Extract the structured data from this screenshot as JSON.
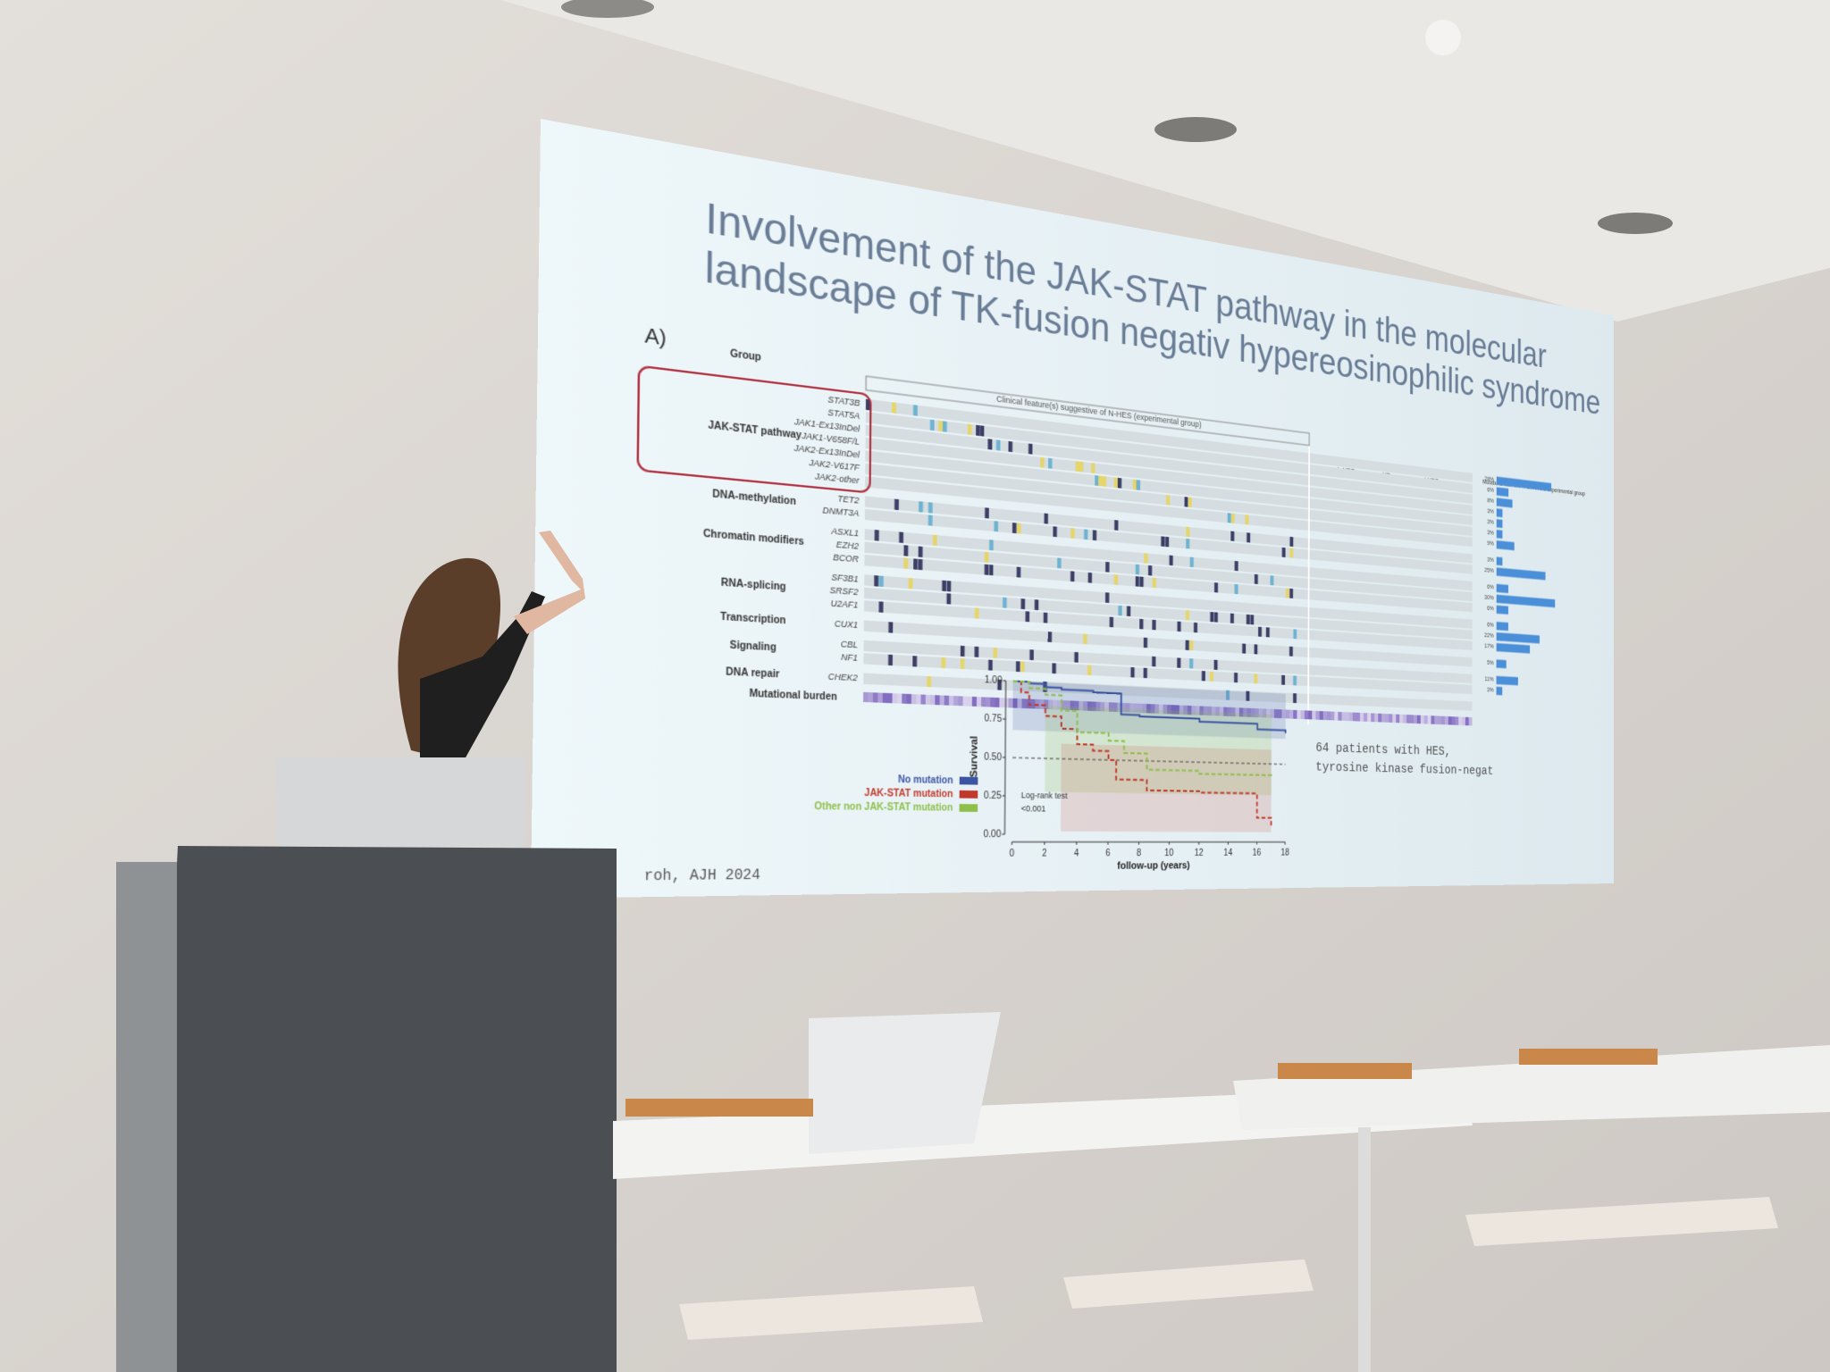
{
  "slide": {
    "title": [
      "Involvement of the JAK-STAT pathway in the molecular",
      "landscape of TK-fusion negativ hypereosinophilic syndrome"
    ],
    "panel_label": "A)",
    "oncoplot": {
      "group_header": "Group",
      "clinical_header": "Clinical feature(s) suggestive of N-HES (experimental group)",
      "subgroups": [
        "L-HES",
        "HEus",
        "i-HES"
      ],
      "groups": [
        {
          "label": "JAK-STAT pathway",
          "genes": [
            "STAT3B",
            "STAT5A",
            "JAK1-Ex13InDel",
            "JAK1-V658F/L",
            "JAK2-Ex13InDel",
            "JAK2-V617F",
            "JAK2-other"
          ]
        },
        {
          "label": "DNA-methylation",
          "genes": [
            "TET2",
            "DNMT3A"
          ]
        },
        {
          "label": "Chromatin modifiers",
          "genes": [
            "ASXL1",
            "EZH2",
            "BCOR"
          ]
        },
        {
          "label": "RNA-splicing",
          "genes": [
            "SF3B1",
            "SRSF2",
            "U2AF1"
          ]
        },
        {
          "label": "Transcription",
          "genes": [
            "CUX1"
          ]
        },
        {
          "label": "Signaling",
          "genes": [
            "CBL",
            "NF1"
          ]
        },
        {
          "label": "DNA repair",
          "genes": [
            "CHEK2"
          ]
        }
      ],
      "mutational_burden": "Mutational burden",
      "bar_header": "Mutations with VAF > 2% in the experimental group",
      "bars": [
        {
          "value": 28,
          "label": "28%"
        },
        {
          "value": 6,
          "label": "6%"
        },
        {
          "value": 8,
          "label": "8%"
        },
        {
          "value": 3,
          "label": "3%"
        },
        {
          "value": 3,
          "label": "3%"
        },
        {
          "value": 3,
          "label": "3%"
        },
        {
          "value": 9,
          "label": "9%"
        },
        {
          "value": 3,
          "label": "3%"
        },
        {
          "value": 25,
          "label": "25%"
        },
        {
          "value": 6,
          "label": "6%"
        },
        {
          "value": 30,
          "label": "30%"
        },
        {
          "value": 6,
          "label": "6%"
        },
        {
          "value": 6,
          "label": "6%"
        },
        {
          "value": 22,
          "label": "22%"
        },
        {
          "value": 17,
          "label": "17%"
        },
        {
          "value": 5,
          "label": "5%"
        },
        {
          "value": 11,
          "label": "11%"
        },
        {
          "value": 3,
          "label": "3%"
        }
      ]
    },
    "survival_plot": {
      "y_label": "Survival",
      "x_label": "follow-up (years)",
      "yticks": [
        "1.00",
        "0.75",
        "0.50",
        "0.25",
        "0.00"
      ],
      "xticks": [
        "0",
        "2",
        "4",
        "6",
        "8",
        "10",
        "12",
        "14",
        "16",
        "18"
      ],
      "legend": [
        "No mutation",
        "JAK-STAT mutation",
        "Other non JAK-STAT mutation"
      ],
      "test": [
        "Log-rank test",
        "<0.001"
      ],
      "curves": [
        {
          "color": "#3b55a3",
          "times": [
            0,
            1,
            2,
            3,
            5,
            6.8,
            8,
            12,
            16,
            18
          ],
          "survival": [
            1,
            0.99,
            0.97,
            0.96,
            0.95,
            0.81,
            0.8,
            0.78,
            0.74,
            0.72
          ]
        },
        {
          "color": "#c0392b",
          "times": [
            0,
            0.5,
            1,
            2,
            3,
            4,
            5,
            6,
            6.5,
            8.5,
            12,
            16,
            17
          ],
          "survival": [
            1,
            0.93,
            0.85,
            0.78,
            0.7,
            0.6,
            0.56,
            0.5,
            0.37,
            0.3,
            0.29,
            0.12,
            0.05
          ]
        },
        {
          "color": "#8dbf4a",
          "times": [
            0,
            1,
            2,
            3,
            4,
            6,
            7,
            8.5,
            12,
            17
          ],
          "survival": [
            1,
            0.96,
            0.92,
            0.82,
            0.68,
            0.63,
            0.55,
            0.44,
            0.42,
            0.4
          ]
        }
      ]
    },
    "side_note": [
      "64 patients with HES,",
      "tyrosine kinase fusion-negat"
    ],
    "citation": "roh, AJH 2024"
  }
}
